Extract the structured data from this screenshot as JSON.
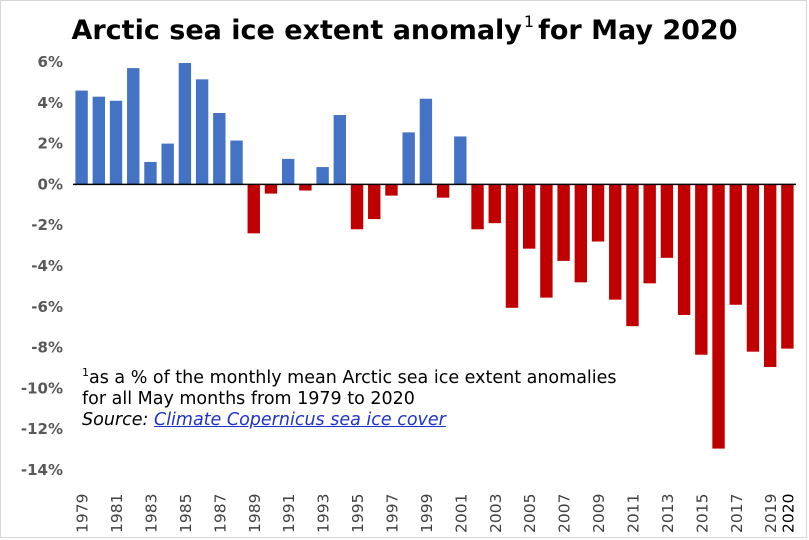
{
  "title": {
    "text": "Arctic sea ice extent anomaly",
    "footnote_mark": "1",
    "suffix": "for May 2020"
  },
  "note": {
    "mark": "1",
    "line1": "as a % of the monthly mean Arctic sea ice extent anomalies",
    "line2": "for all May months from 1979 to 2020",
    "source_label": "Source:",
    "source_link": "Climate Copernicus sea ice cover"
  },
  "colors": {
    "positive": "#4472c4",
    "negative": "#c00000",
    "axis": "#000000",
    "link": "#1f33cc"
  },
  "chart_data": {
    "type": "bar",
    "title": "Arctic sea ice extent anomaly for May 2020",
    "ylim": [
      -14,
      6
    ],
    "yticks": [
      6,
      4,
      2,
      0,
      -2,
      -4,
      -6,
      -8,
      -10,
      -12,
      -14
    ],
    "ytick_labels": [
      "6%",
      "4%",
      "2%",
      "0%",
      "-2%",
      "-4%",
      "-6%",
      "-8%",
      "-10%",
      "-12%",
      "-14%"
    ],
    "grid": false,
    "categories": [
      "1979",
      "1980",
      "1981",
      "1982",
      "1983",
      "1984",
      "1985",
      "1986",
      "1987",
      "1988",
      "1989",
      "1990",
      "1991",
      "1992",
      "1993",
      "1994",
      "1995",
      "1996",
      "1997",
      "1998",
      "1999",
      "2000",
      "2001",
      "2002",
      "2003",
      "2004",
      "2005",
      "2006",
      "2007",
      "2008",
      "2009",
      "2010",
      "2011",
      "2012",
      "2013",
      "2014",
      "2015",
      "2016",
      "2017",
      "2018",
      "2019",
      "2020"
    ],
    "xtick_labels": [
      "1979",
      "1981",
      "1983",
      "1985",
      "1987",
      "1989",
      "1991",
      "1993",
      "1995",
      "1997",
      "1999",
      "2001",
      "2003",
      "2005",
      "2007",
      "2009",
      "2011",
      "2013",
      "2015",
      "2017",
      "2019",
      "2020"
    ],
    "values": [
      4.6,
      4.3,
      4.1,
      5.7,
      1.1,
      2.0,
      5.95,
      5.15,
      3.5,
      2.15,
      -2.4,
      -0.45,
      1.25,
      -0.3,
      0.85,
      3.4,
      -2.2,
      -1.7,
      -0.55,
      2.55,
      4.2,
      -0.65,
      2.35,
      -2.2,
      -1.9,
      -6.05,
      -3.15,
      -5.55,
      -3.75,
      -4.8,
      -2.8,
      -5.65,
      -6.95,
      -4.85,
      -3.6,
      -6.4,
      -8.35,
      -12.95,
      -5.9,
      -8.2,
      -8.95,
      -8.05
    ]
  }
}
